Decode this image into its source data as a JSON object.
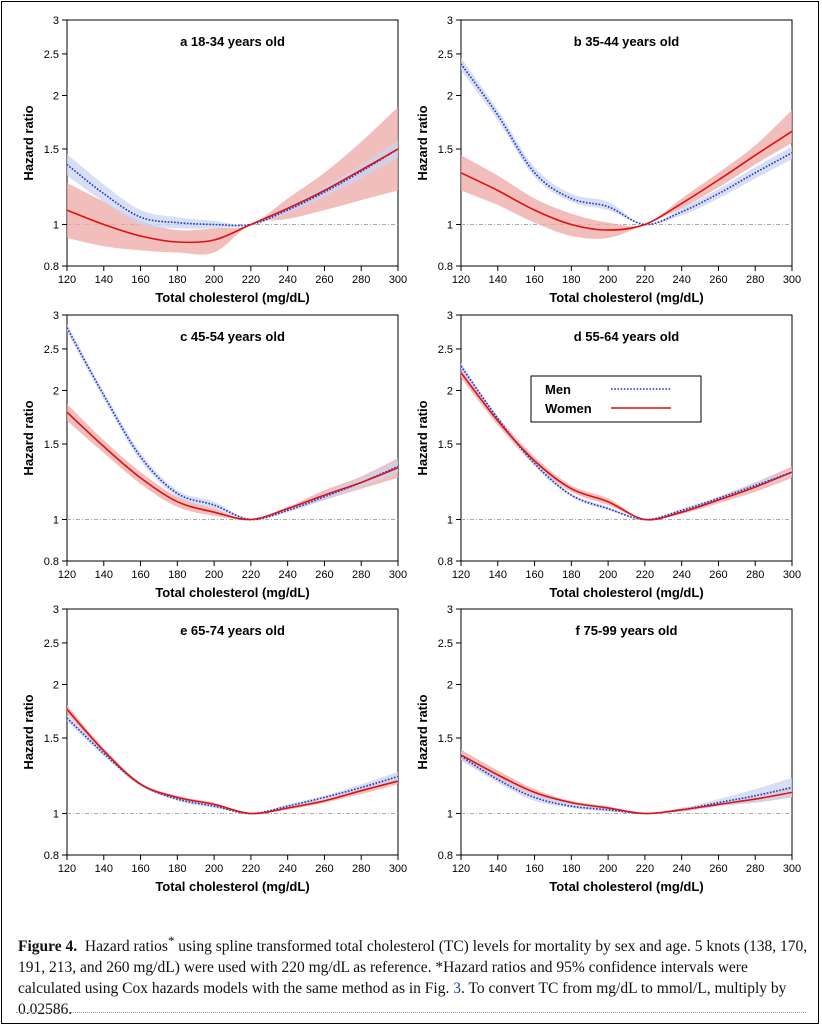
{
  "caption": {
    "figure_label": "Figure 4.",
    "text_a": "Hazard ratios",
    "sup": "*",
    "text_b": " using spline transformed total cholesterol (TC) levels for mortality by sex and age. 5 knots (138, 170, 191, 213, and 260 mg/dL) were used with 220 mg/dL as reference. *Hazard ratios and 95% confidence intervals were calculated using Cox hazards models with the same method as in Fig. ",
    "fig_ref": "3",
    "text_c": ". To convert TC from mg/dL to mmol/L, multiply by 0.02586."
  },
  "colors": {
    "men": "#2233cc",
    "men_band": "#c8d4ef",
    "women": "#dd1111",
    "women_band": "#eea8a4",
    "reference": "#aaaaaa"
  },
  "legend": {
    "men": "Men",
    "women": "Women"
  },
  "chart_data": [
    {
      "type": "line",
      "title": "a 18-34 years old",
      "xlabel": "Total cholesterol (mg/dL)",
      "ylabel": "Hazard ratio",
      "xlim": [
        120,
        300
      ],
      "ylim": [
        0.8,
        3
      ],
      "y_scale": "log",
      "xticks": [
        120,
        140,
        160,
        180,
        200,
        220,
        240,
        260,
        280,
        300
      ],
      "yticks": [
        0.8,
        1,
        1.5,
        2,
        2.5,
        3
      ],
      "ytick_labels": [
        "0.8",
        "1",
        "1.5",
        "2",
        "2.5",
        "3"
      ],
      "reference_line": 1,
      "x": [
        120,
        140,
        160,
        180,
        200,
        220,
        240,
        260,
        280,
        300
      ],
      "series": [
        {
          "name": "Men",
          "style": "dotted",
          "values": [
            1.38,
            1.18,
            1.04,
            1.01,
            1.0,
            1.0,
            1.08,
            1.19,
            1.33,
            1.5
          ],
          "lower": [
            1.3,
            1.13,
            1.0,
            0.98,
            0.98,
            1.0,
            1.06,
            1.16,
            1.28,
            1.43
          ],
          "upper": [
            1.46,
            1.24,
            1.08,
            1.04,
            1.02,
            1.0,
            1.1,
            1.22,
            1.38,
            1.57
          ]
        },
        {
          "name": "Women",
          "style": "solid",
          "values": [
            1.08,
            1.0,
            0.94,
            0.91,
            0.92,
            1.0,
            1.09,
            1.2,
            1.34,
            1.5
          ],
          "lower": [
            0.93,
            0.89,
            0.87,
            0.86,
            0.86,
            1.0,
            1.03,
            1.08,
            1.14,
            1.2
          ],
          "upper": [
            1.25,
            1.13,
            1.02,
            0.97,
            0.98,
            1.0,
            1.15,
            1.32,
            1.56,
            1.88
          ]
        }
      ]
    },
    {
      "type": "line",
      "title": "b 35-44 years old",
      "xlabel": "Total cholesterol (mg/dL)",
      "ylabel": "Hazard ratio",
      "xlim": [
        120,
        300
      ],
      "ylim": [
        0.8,
        3
      ],
      "y_scale": "log",
      "xticks": [
        120,
        140,
        160,
        180,
        200,
        220,
        240,
        260,
        280,
        300
      ],
      "yticks": [
        0.8,
        1,
        1.5,
        2,
        2.5,
        3
      ],
      "ytick_labels": [
        "0.8",
        "1",
        "1.5",
        "2",
        "2.5",
        "3"
      ],
      "reference_line": 1,
      "x": [
        120,
        140,
        160,
        180,
        200,
        220,
        240,
        260,
        280,
        300
      ],
      "series": [
        {
          "name": "Men",
          "style": "dotted",
          "values": [
            2.37,
            1.8,
            1.32,
            1.15,
            1.1,
            1.0,
            1.07,
            1.18,
            1.32,
            1.47
          ],
          "lower": [
            2.29,
            1.75,
            1.29,
            1.13,
            1.08,
            1.0,
            1.05,
            1.15,
            1.28,
            1.42
          ],
          "upper": [
            2.45,
            1.85,
            1.36,
            1.18,
            1.13,
            1.0,
            1.09,
            1.21,
            1.36,
            1.52
          ]
        },
        {
          "name": "Women",
          "style": "solid",
          "values": [
            1.32,
            1.2,
            1.08,
            1.0,
            0.97,
            1.0,
            1.12,
            1.27,
            1.45,
            1.65
          ],
          "lower": [
            1.2,
            1.11,
            1.01,
            0.94,
            0.93,
            1.0,
            1.09,
            1.22,
            1.38,
            1.55
          ],
          "upper": [
            1.45,
            1.3,
            1.15,
            1.06,
            1.01,
            1.0,
            1.15,
            1.32,
            1.53,
            1.85
          ]
        }
      ]
    },
    {
      "type": "line",
      "title": "c 45-54 years old",
      "xlabel": "Total cholesterol (mg/dL)",
      "ylabel": "Hazard ratio",
      "xlim": [
        120,
        300
      ],
      "ylim": [
        0.8,
        3
      ],
      "y_scale": "log",
      "xticks": [
        120,
        140,
        160,
        180,
        200,
        220,
        240,
        260,
        280,
        300
      ],
      "yticks": [
        0.8,
        1,
        1.5,
        2,
        2.5,
        3
      ],
      "ytick_labels": [
        "0.8",
        "1",
        "1.5",
        "2",
        "2.5",
        "3"
      ],
      "reference_line": 1,
      "x": [
        120,
        140,
        160,
        180,
        200,
        220,
        240,
        260,
        280,
        300
      ],
      "series": [
        {
          "name": "Men",
          "style": "dotted",
          "values": [
            2.8,
            1.95,
            1.4,
            1.15,
            1.08,
            1.0,
            1.05,
            1.13,
            1.22,
            1.33
          ],
          "lower": [
            2.74,
            1.91,
            1.37,
            1.13,
            1.06,
            1.0,
            1.04,
            1.11,
            1.19,
            1.29
          ],
          "upper": [
            2.86,
            1.99,
            1.43,
            1.17,
            1.1,
            1.0,
            1.06,
            1.15,
            1.25,
            1.37
          ]
        },
        {
          "name": "Women",
          "style": "solid",
          "values": [
            1.78,
            1.48,
            1.25,
            1.1,
            1.04,
            1.0,
            1.06,
            1.14,
            1.22,
            1.32
          ],
          "lower": [
            1.7,
            1.43,
            1.21,
            1.07,
            1.02,
            1.0,
            1.05,
            1.11,
            1.18,
            1.25
          ],
          "upper": [
            1.86,
            1.53,
            1.29,
            1.13,
            1.06,
            1.0,
            1.07,
            1.17,
            1.26,
            1.39
          ]
        }
      ]
    },
    {
      "type": "line",
      "title": "d 55-64 years old",
      "xlabel": "Total cholesterol (mg/dL)",
      "ylabel": "Hazard ratio",
      "xlim": [
        120,
        300
      ],
      "ylim": [
        0.8,
        3
      ],
      "y_scale": "log",
      "xticks": [
        120,
        140,
        160,
        180,
        200,
        220,
        240,
        260,
        280,
        300
      ],
      "yticks": [
        0.8,
        1,
        1.5,
        2,
        2.5,
        3
      ],
      "ytick_labels": [
        "0.8",
        "1",
        "1.5",
        "2",
        "2.5",
        "3"
      ],
      "reference_line": 1,
      "x": [
        120,
        140,
        160,
        180,
        200,
        220,
        240,
        260,
        280,
        300
      ],
      "series": [
        {
          "name": "Men",
          "style": "dotted",
          "values": [
            2.28,
            1.72,
            1.35,
            1.14,
            1.06,
            1.0,
            1.05,
            1.12,
            1.2,
            1.29
          ],
          "lower": [
            2.24,
            1.7,
            1.33,
            1.13,
            1.05,
            1.0,
            1.04,
            1.11,
            1.18,
            1.27
          ],
          "upper": [
            2.32,
            1.74,
            1.37,
            1.15,
            1.07,
            1.0,
            1.06,
            1.13,
            1.22,
            1.31
          ]
        },
        {
          "name": "Women",
          "style": "solid",
          "values": [
            2.2,
            1.7,
            1.37,
            1.18,
            1.1,
            1.0,
            1.04,
            1.11,
            1.19,
            1.29
          ],
          "lower": [
            2.14,
            1.66,
            1.34,
            1.16,
            1.08,
            1.0,
            1.03,
            1.09,
            1.16,
            1.25
          ],
          "upper": [
            2.26,
            1.74,
            1.4,
            1.2,
            1.12,
            1.0,
            1.05,
            1.13,
            1.22,
            1.33
          ]
        }
      ]
    },
    {
      "type": "line",
      "title": "e 65-74 years old",
      "xlabel": "Total cholesterol (mg/dL)",
      "ylabel": "Hazard ratio",
      "xlim": [
        120,
        300
      ],
      "ylim": [
        0.8,
        3
      ],
      "y_scale": "log",
      "xticks": [
        120,
        140,
        160,
        180,
        200,
        220,
        240,
        260,
        280,
        300
      ],
      "yticks": [
        0.8,
        1,
        1.5,
        2,
        2.5,
        3
      ],
      "ytick_labels": [
        "0.8",
        "1",
        "1.5",
        "2",
        "2.5",
        "3"
      ],
      "reference_line": 1,
      "x": [
        120,
        140,
        160,
        180,
        200,
        220,
        240,
        260,
        280,
        300
      ],
      "series": [
        {
          "name": "Men",
          "style": "dotted",
          "values": [
            1.67,
            1.38,
            1.17,
            1.08,
            1.04,
            1.0,
            1.04,
            1.09,
            1.15,
            1.22
          ],
          "lower": [
            1.64,
            1.36,
            1.16,
            1.07,
            1.03,
            1.0,
            1.03,
            1.08,
            1.13,
            1.19
          ],
          "upper": [
            1.7,
            1.4,
            1.18,
            1.09,
            1.05,
            1.0,
            1.05,
            1.1,
            1.17,
            1.25
          ]
        },
        {
          "name": "Women",
          "style": "solid",
          "values": [
            1.75,
            1.4,
            1.17,
            1.09,
            1.05,
            1.0,
            1.03,
            1.07,
            1.13,
            1.19
          ],
          "lower": [
            1.71,
            1.38,
            1.16,
            1.08,
            1.04,
            1.0,
            1.02,
            1.06,
            1.11,
            1.17
          ],
          "upper": [
            1.79,
            1.42,
            1.18,
            1.1,
            1.06,
            1.0,
            1.04,
            1.08,
            1.15,
            1.21
          ]
        }
      ]
    },
    {
      "type": "line",
      "title": "f 75-99 years old",
      "xlabel": "Total cholesterol (mg/dL)",
      "ylabel": "Hazard ratio",
      "xlim": [
        120,
        300
      ],
      "ylim": [
        0.8,
        3
      ],
      "y_scale": "log",
      "xticks": [
        120,
        140,
        160,
        180,
        200,
        220,
        240,
        260,
        280,
        300
      ],
      "yticks": [
        0.8,
        1,
        1.5,
        2,
        2.5,
        3
      ],
      "ytick_labels": [
        "0.8",
        "1",
        "1.5",
        "2",
        "2.5",
        "3"
      ],
      "reference_line": 1,
      "x": [
        120,
        140,
        160,
        180,
        200,
        220,
        240,
        260,
        280,
        300
      ],
      "series": [
        {
          "name": "Men",
          "style": "dotted",
          "values": [
            1.36,
            1.2,
            1.09,
            1.04,
            1.02,
            1.0,
            1.02,
            1.06,
            1.1,
            1.15
          ],
          "lower": [
            1.33,
            1.18,
            1.07,
            1.03,
            1.01,
            1.0,
            1.01,
            1.04,
            1.06,
            1.09
          ],
          "upper": [
            1.39,
            1.22,
            1.11,
            1.06,
            1.03,
            1.0,
            1.03,
            1.08,
            1.14,
            1.21
          ]
        },
        {
          "name": "Women",
          "style": "solid",
          "values": [
            1.37,
            1.23,
            1.12,
            1.06,
            1.03,
            1.0,
            1.02,
            1.05,
            1.08,
            1.12
          ],
          "lower": [
            1.33,
            1.2,
            1.1,
            1.05,
            1.02,
            1.0,
            1.01,
            1.04,
            1.06,
            1.09
          ],
          "upper": [
            1.41,
            1.26,
            1.14,
            1.07,
            1.04,
            1.0,
            1.03,
            1.06,
            1.1,
            1.15
          ]
        }
      ]
    }
  ]
}
